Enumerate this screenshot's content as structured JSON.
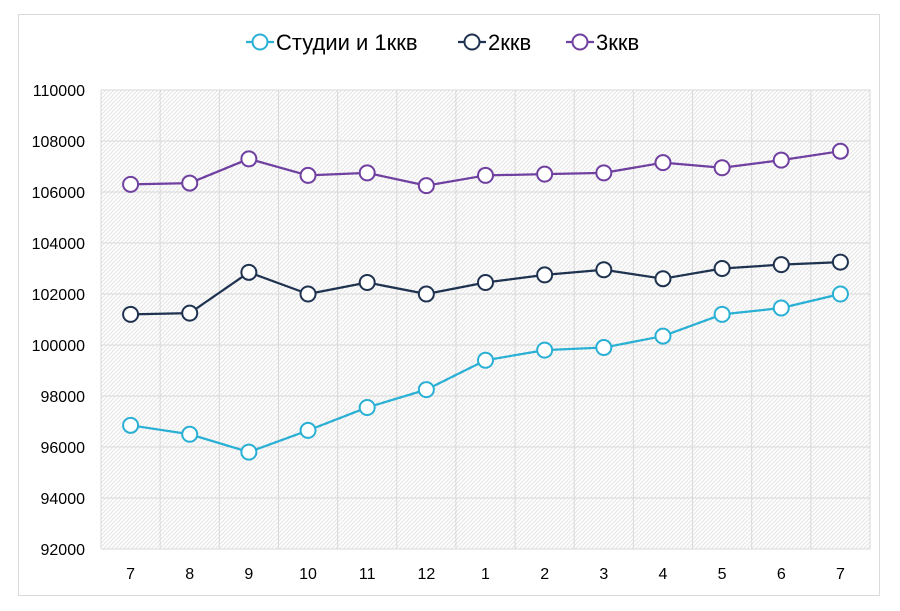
{
  "chart_data": {
    "type": "line",
    "title": "",
    "xlabel": "",
    "ylabel": "",
    "categories": [
      "7",
      "8",
      "9",
      "10",
      "11",
      "12",
      "1",
      "2",
      "3",
      "4",
      "5",
      "6",
      "7"
    ],
    "ylim": [
      92000,
      110000
    ],
    "yticks": [
      92000,
      94000,
      96000,
      98000,
      100000,
      102000,
      104000,
      106000,
      108000,
      110000
    ],
    "grid": true,
    "legend_position": "top",
    "series": [
      {
        "name": "Студии и 1ккв",
        "color": "#2ab0d4",
        "values": [
          96850,
          96500,
          95800,
          96650,
          97550,
          98250,
          99400,
          99800,
          99900,
          100350,
          101200,
          101450,
          102000
        ]
      },
      {
        "name": "2ккв",
        "color": "#1f3350",
        "values": [
          101200,
          101250,
          102850,
          102000,
          102450,
          102000,
          102450,
          102750,
          102950,
          102600,
          103000,
          103150,
          103250
        ]
      },
      {
        "name": "3ккв",
        "color": "#7040a0",
        "values": [
          106300,
          106350,
          107300,
          106650,
          106750,
          106250,
          106650,
          106700,
          106750,
          107150,
          106950,
          107250,
          107600
        ]
      }
    ]
  }
}
